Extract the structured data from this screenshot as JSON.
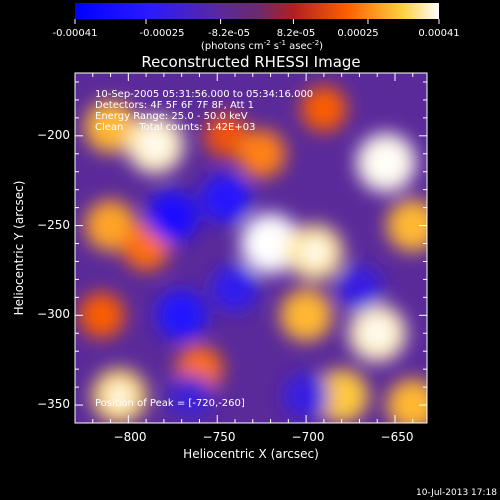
{
  "colorbar": {
    "tick_labels": [
      "-0.00041",
      "-0.00025",
      "-8.2e-05",
      "8.2e-05",
      "0.00025",
      "0.00041"
    ],
    "unit_label": "(photons cm",
    "unit_label_sup1": "-2",
    "unit_label_mid": " s",
    "unit_label_sup2": "-1",
    "unit_label_end": " asec",
    "unit_label_sup3": "-2",
    "unit_label_close": ")",
    "range": [
      -0.00041,
      0.00041
    ],
    "colors": [
      "#0000ff",
      "#5a2a9a",
      "#b02020",
      "#ff6000",
      "#ffd040",
      "#ffffff"
    ]
  },
  "chart_data": {
    "type": "heatmap",
    "title": "Reconstructed RHESSI Image",
    "xlabel": "Heliocentric X (arcsec)",
    "ylabel": "Heliocentric Y (arcsec)",
    "xlim": [
      -830,
      -632
    ],
    "ylim": [
      -360,
      -165
    ],
    "x_ticks": [
      -800,
      -750,
      -700,
      -650
    ],
    "y_ticks": [
      -200,
      -250,
      -300,
      -350
    ],
    "x_tick_labels": [
      "−800",
      "−750",
      "−700",
      "−650"
    ],
    "y_tick_labels": [
      "−200",
      "−250",
      "−300",
      "−350"
    ],
    "annotations": [
      "10-Sep-2005 05:31:56.000 to 05:34:16.000",
      "Detectors: 4F 5F 6F 7F 8F, Att 1",
      "Energy Range: 25.0 - 50.0 keV",
      "Clean     Total counts: 1.42E+03"
    ],
    "peak_label": "Position of Peak = [-720,-260]",
    "peak": [
      -720,
      -260
    ],
    "blobs": [
      {
        "x": -810,
        "y": -195,
        "value": 0.0003
      },
      {
        "x": -785,
        "y": -205,
        "value": 0.00038
      },
      {
        "x": -810,
        "y": -250,
        "value": 0.00028
      },
      {
        "x": -790,
        "y": -262,
        "value": 0.00022
      },
      {
        "x": -815,
        "y": -300,
        "value": 0.0002
      },
      {
        "x": -805,
        "y": -345,
        "value": 0.00034
      },
      {
        "x": -760,
        "y": -330,
        "value": 0.00022
      },
      {
        "x": -745,
        "y": -200,
        "value": 0.00018
      },
      {
        "x": -720,
        "y": -260,
        "value": 0.00041
      },
      {
        "x": -725,
        "y": -210,
        "value": 0.00024
      },
      {
        "x": -690,
        "y": -185,
        "value": 0.0002
      },
      {
        "x": -695,
        "y": -265,
        "value": 0.00036
      },
      {
        "x": -700,
        "y": -300,
        "value": 0.0003
      },
      {
        "x": -680,
        "y": -345,
        "value": 0.00032
      },
      {
        "x": -660,
        "y": -310,
        "value": 0.00038
      },
      {
        "x": -655,
        "y": -215,
        "value": 0.0004
      },
      {
        "x": -640,
        "y": -250,
        "value": 0.0003
      },
      {
        "x": -640,
        "y": -350,
        "value": 0.0003
      },
      {
        "x": -775,
        "y": -245,
        "value": -0.0003
      },
      {
        "x": -770,
        "y": -300,
        "value": -0.00028
      },
      {
        "x": -740,
        "y": -285,
        "value": -0.00022
      },
      {
        "x": -745,
        "y": -235,
        "value": -0.00026
      },
      {
        "x": -700,
        "y": -345,
        "value": -0.0002
      },
      {
        "x": -765,
        "y": -345,
        "value": -0.00018
      },
      {
        "x": -670,
        "y": -285,
        "value": -0.0002
      }
    ]
  },
  "footer": {
    "timestamp": "10-Jul-2013 17:18"
  }
}
